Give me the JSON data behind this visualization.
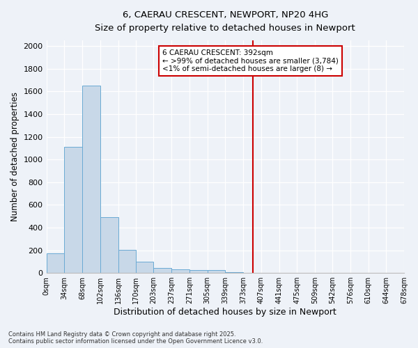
{
  "title": "6, CAERAU CRESCENT, NEWPORT, NP20 4HG",
  "subtitle": "Size of property relative to detached houses in Newport",
  "xlabel": "Distribution of detached houses by size in Newport",
  "ylabel": "Number of detached properties",
  "bar_color": "#c8d8e8",
  "bar_edge_color": "#6aaad4",
  "background_color": "#eef2f8",
  "grid_color": "#ffffff",
  "vline_x": 392,
  "vline_color": "#cc0000",
  "annotation_title": "6 CAERAU CRESCENT: 392sqm",
  "annotation_line1": "← >99% of detached houses are smaller (3,784)",
  "annotation_line2": "<1% of semi-detached houses are larger (8) →",
  "bin_edges": [
    0,
    34,
    68,
    102,
    136,
    170,
    203,
    237,
    271,
    305,
    339,
    373,
    407,
    441,
    475,
    509,
    542,
    576,
    610,
    644,
    678
  ],
  "bar_heights": [
    175,
    1110,
    1650,
    490,
    205,
    100,
    45,
    35,
    25,
    25,
    5,
    0,
    0,
    0,
    0,
    0,
    0,
    0,
    0,
    0
  ],
  "ylim": [
    0,
    2050
  ],
  "yticks": [
    0,
    200,
    400,
    600,
    800,
    1000,
    1200,
    1400,
    1600,
    1800,
    2000
  ],
  "footnote1": "Contains HM Land Registry data © Crown copyright and database right 2025.",
  "footnote2": "Contains public sector information licensed under the Open Government Licence v3.0."
}
